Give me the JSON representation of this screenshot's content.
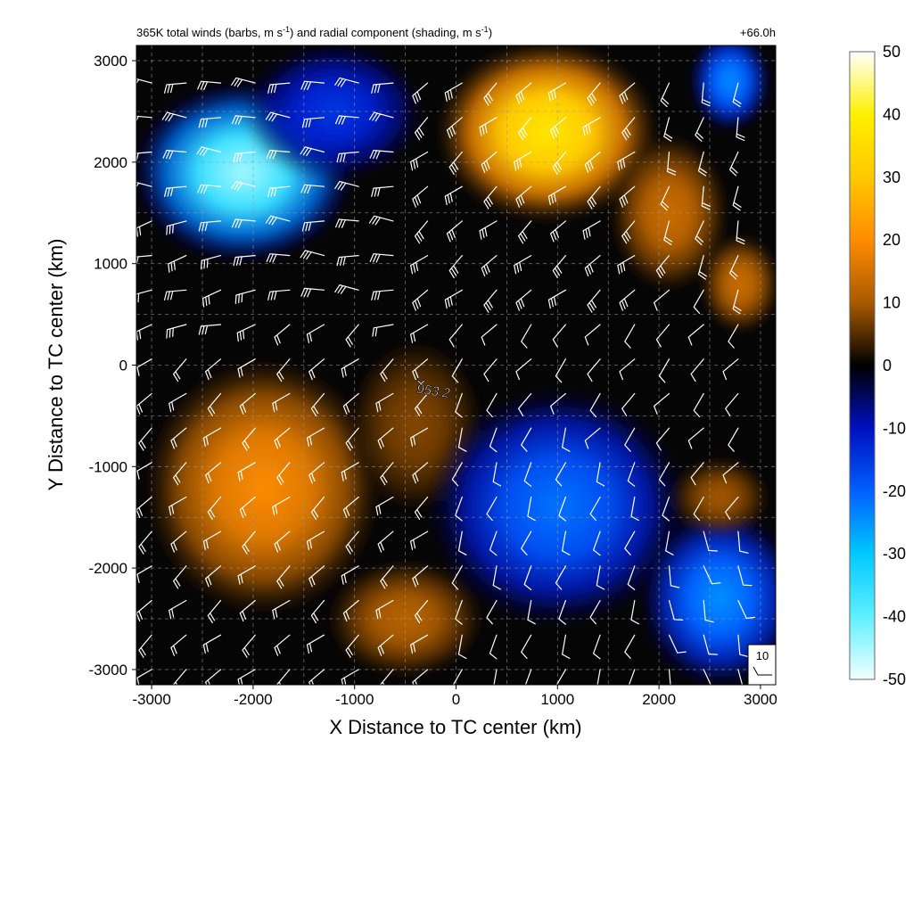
{
  "figure": {
    "title_main": "365K total winds (barbs, m s",
    "title_sup1": "-1",
    "title_mid": ") and radial component (shading, m s",
    "title_sup2": "-1",
    "title_end": ")",
    "time_label": "+66.0h"
  },
  "chart_data": {
    "type": "heatmap",
    "xlabel": "X Distance to TC center (km)",
    "ylabel": "Y Distance to TC center (km)",
    "xlim": [
      -3150,
      3150
    ],
    "ylim": [
      -3150,
      3150
    ],
    "xticks": [
      -3000,
      -2000,
      -1000,
      0,
      1000,
      2000,
      3000
    ],
    "yticks": [
      -3000,
      -2000,
      -1000,
      0,
      1000,
      2000,
      3000
    ],
    "grid": true,
    "colorbar": {
      "min": -50,
      "max": 50,
      "ticks": [
        50,
        40,
        30,
        20,
        10,
        0,
        -10,
        -20,
        -30,
        -40,
        -50
      ],
      "stops": [
        {
          "v": -50,
          "c": "#f2ffff"
        },
        {
          "v": -40,
          "c": "#5ff0ff"
        },
        {
          "v": -30,
          "c": "#00c8ff"
        },
        {
          "v": -20,
          "c": "#0060ff"
        },
        {
          "v": -10,
          "c": "#0010c0"
        },
        {
          "v": 0,
          "c": "#000000"
        },
        {
          "v": 10,
          "c": "#a85a00"
        },
        {
          "v": 20,
          "c": "#ff8c00"
        },
        {
          "v": 30,
          "c": "#ffc800"
        },
        {
          "v": 40,
          "c": "#fff000"
        },
        {
          "v": 50,
          "c": "#ffffff"
        }
      ]
    },
    "field_blobs": [
      {
        "x": -2100,
        "y": 1900,
        "sx": 1100,
        "sy": 900,
        "a": -45
      },
      {
        "x": -1200,
        "y": 2500,
        "sx": 900,
        "sy": 700,
        "a": -15
      },
      {
        "x": 900,
        "y": 2300,
        "sx": 1100,
        "sy": 900,
        "a": 38
      },
      {
        "x": 2100,
        "y": 1500,
        "sx": 600,
        "sy": 800,
        "a": 14
      },
      {
        "x": 2700,
        "y": 2800,
        "sx": 400,
        "sy": 500,
        "a": -25
      },
      {
        "x": -1900,
        "y": -1200,
        "sx": 1200,
        "sy": 1300,
        "a": 20
      },
      {
        "x": -400,
        "y": -600,
        "sx": 700,
        "sy": 900,
        "a": 8
      },
      {
        "x": -500,
        "y": -2500,
        "sx": 800,
        "sy": 600,
        "a": 12
      },
      {
        "x": 1000,
        "y": -1400,
        "sx": 1300,
        "sy": 1200,
        "a": -22
      },
      {
        "x": 2600,
        "y": -2300,
        "sx": 800,
        "sy": 900,
        "a": -25
      },
      {
        "x": 2600,
        "y": -1300,
        "sx": 500,
        "sy": 400,
        "a": 10
      },
      {
        "x": 2800,
        "y": 800,
        "sx": 400,
        "sy": 500,
        "a": 14
      }
    ],
    "wind_regions": [
      {
        "x": -2000,
        "y": 2000,
        "s": 1400,
        "dir": 280,
        "spd": 30
      },
      {
        "x": 900,
        "y": 2300,
        "s": 1300,
        "dir": 235,
        "spd": 30
      },
      {
        "x": 2500,
        "y": 2200,
        "s": 900,
        "dir": 200,
        "spd": 20
      },
      {
        "x": -1700,
        "y": -1300,
        "s": 1500,
        "dir": 255,
        "spd": 15
      },
      {
        "x": 1200,
        "y": -1300,
        "s": 1500,
        "dir": 225,
        "spd": 10
      },
      {
        "x": 2600,
        "y": -2300,
        "s": 900,
        "dir": 190,
        "spd": 10
      }
    ],
    "center_marker": {
      "x": -400,
      "y": -200,
      "label": "953.2"
    },
    "reference_vector": {
      "label": "10"
    }
  }
}
